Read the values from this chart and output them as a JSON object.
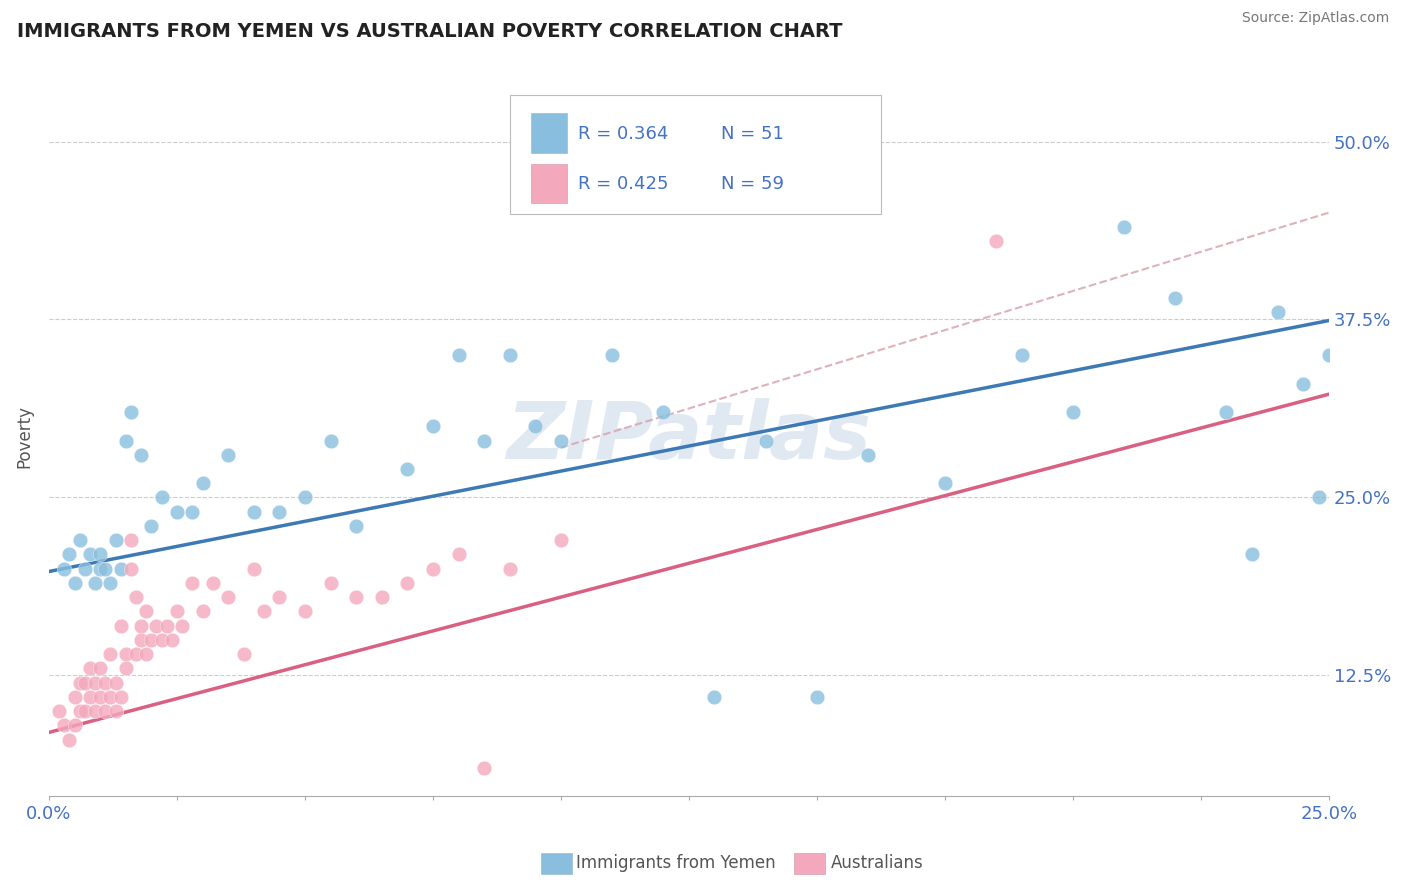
{
  "title": "IMMIGRANTS FROM YEMEN VS AUSTRALIAN POVERTY CORRELATION CHART",
  "source": "Source: ZipAtlas.com",
  "ylabel": "Poverty",
  "xlim": [
    0.0,
    0.25
  ],
  "ylim": [
    0.04,
    0.545
  ],
  "ytick_labels": [
    "12.5%",
    "25.0%",
    "37.5%",
    "50.0%"
  ],
  "ytick_values": [
    0.125,
    0.25,
    0.375,
    0.5
  ],
  "legend_r1": "R = 0.364",
  "legend_n1": "N = 51",
  "legend_r2": "R = 0.425",
  "legend_n2": "N = 59",
  "color_blue": "#89bede",
  "color_pink": "#f4a8bc",
  "color_blue_line": "#3d7ab5",
  "color_pink_line": "#d96080",
  "color_dashed": "#d4a0a8",
  "watermark_color": "#c8d8e8",
  "blue_intercept": 0.198,
  "blue_slope": 0.705,
  "pink_intercept": 0.085,
  "pink_slope": 0.95,
  "blue_scatter_x": [
    0.003,
    0.004,
    0.005,
    0.006,
    0.007,
    0.008,
    0.009,
    0.01,
    0.01,
    0.011,
    0.012,
    0.013,
    0.014,
    0.015,
    0.016,
    0.018,
    0.02,
    0.022,
    0.025,
    0.028,
    0.03,
    0.035,
    0.04,
    0.045,
    0.05,
    0.055,
    0.06,
    0.07,
    0.075,
    0.08,
    0.085,
    0.09,
    0.095,
    0.1,
    0.11,
    0.12,
    0.13,
    0.14,
    0.15,
    0.16,
    0.175,
    0.19,
    0.2,
    0.21,
    0.22,
    0.23,
    0.235,
    0.24,
    0.245,
    0.248,
    0.25
  ],
  "blue_scatter_y": [
    0.2,
    0.21,
    0.19,
    0.22,
    0.2,
    0.21,
    0.19,
    0.2,
    0.21,
    0.2,
    0.19,
    0.22,
    0.2,
    0.29,
    0.31,
    0.28,
    0.23,
    0.25,
    0.24,
    0.24,
    0.26,
    0.28,
    0.24,
    0.24,
    0.25,
    0.29,
    0.23,
    0.27,
    0.3,
    0.35,
    0.29,
    0.35,
    0.3,
    0.29,
    0.35,
    0.31,
    0.11,
    0.29,
    0.11,
    0.28,
    0.26,
    0.35,
    0.31,
    0.44,
    0.39,
    0.31,
    0.21,
    0.38,
    0.33,
    0.25,
    0.35
  ],
  "pink_scatter_x": [
    0.002,
    0.003,
    0.004,
    0.005,
    0.005,
    0.006,
    0.006,
    0.007,
    0.007,
    0.008,
    0.008,
    0.009,
    0.009,
    0.01,
    0.01,
    0.011,
    0.011,
    0.012,
    0.012,
    0.013,
    0.013,
    0.014,
    0.014,
    0.015,
    0.015,
    0.016,
    0.016,
    0.017,
    0.017,
    0.018,
    0.018,
    0.019,
    0.019,
    0.02,
    0.021,
    0.022,
    0.023,
    0.024,
    0.025,
    0.026,
    0.028,
    0.03,
    0.032,
    0.035,
    0.038,
    0.04,
    0.042,
    0.045,
    0.05,
    0.055,
    0.06,
    0.065,
    0.07,
    0.075,
    0.08,
    0.085,
    0.09,
    0.1,
    0.185
  ],
  "pink_scatter_y": [
    0.1,
    0.09,
    0.08,
    0.11,
    0.09,
    0.1,
    0.12,
    0.1,
    0.12,
    0.11,
    0.13,
    0.1,
    0.12,
    0.11,
    0.13,
    0.1,
    0.12,
    0.11,
    0.14,
    0.12,
    0.1,
    0.11,
    0.16,
    0.14,
    0.13,
    0.22,
    0.2,
    0.14,
    0.18,
    0.15,
    0.16,
    0.14,
    0.17,
    0.15,
    0.16,
    0.15,
    0.16,
    0.15,
    0.17,
    0.16,
    0.19,
    0.17,
    0.19,
    0.18,
    0.14,
    0.2,
    0.17,
    0.18,
    0.17,
    0.19,
    0.18,
    0.18,
    0.19,
    0.2,
    0.21,
    0.06,
    0.2,
    0.22,
    0.43
  ]
}
